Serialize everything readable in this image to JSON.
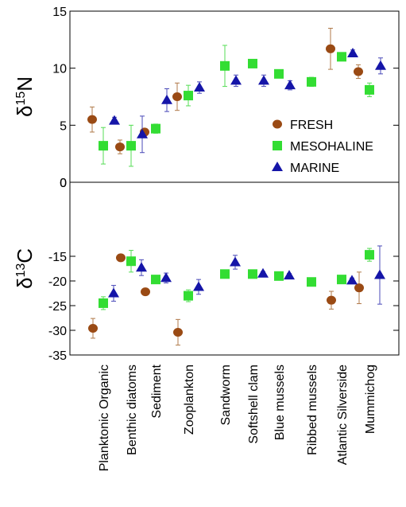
{
  "chart_data": {
    "type": "scatter",
    "categories": [
      "Planktonic Organic",
      "Benthic diatoms",
      "Sediment",
      "Zooplankton",
      "Sandworm",
      "Softshell clam",
      "Blue mussels",
      "Ribbed mussels",
      "Atlantic Silverside",
      "Mummichog"
    ],
    "series_styles": [
      {
        "name": "FRESH",
        "marker": "circle",
        "color": "#9a4a14",
        "errColor": "#b07a4a"
      },
      {
        "name": "MESOHALINE",
        "marker": "square",
        "color": "#33dd33",
        "errColor": "#55dd55"
      },
      {
        "name": "MARINE",
        "marker": "triangle",
        "color": "#1515a8",
        "errColor": "#4a4ab8"
      }
    ],
    "panels": [
      {
        "id": "n15",
        "ylabel_base": "δ",
        "ylabel_sup": "15",
        "ylabel_elem": "N",
        "ylim": [
          0,
          15
        ],
        "yticks": [
          0,
          5,
          10,
          15
        ],
        "series": [
          {
            "name": "FRESH",
            "points": [
              {
                "cat": 0,
                "y": 5.5,
                "err": 1.1
              },
              {
                "cat": 1,
                "y": 3.1,
                "err": 0.6
              },
              {
                "cat": 2,
                "y": 4.4,
                "err": 0.2
              },
              {
                "cat": 3,
                "y": 7.5,
                "err": 1.2
              },
              {
                "cat": 8,
                "y": 11.7,
                "err": 1.8
              },
              {
                "cat": 9,
                "y": 9.7,
                "err": 0.6
              }
            ]
          },
          {
            "name": "MESOHALINE",
            "points": [
              {
                "cat": 0,
                "y": 3.2,
                "err": 1.6
              },
              {
                "cat": 1,
                "y": 3.2,
                "err": 1.8
              },
              {
                "cat": 2,
                "y": 4.7,
                "err": 0.4
              },
              {
                "cat": 3,
                "y": 7.6,
                "err": 0.9
              },
              {
                "cat": 4,
                "y": 10.2,
                "err": 1.8
              },
              {
                "cat": 5,
                "y": 10.4,
                "err": 0.3
              },
              {
                "cat": 6,
                "y": 9.5,
                "err": 0.2
              },
              {
                "cat": 7,
                "y": 8.8,
                "err": 0.4
              },
              {
                "cat": 8,
                "y": 11.0,
                "err": 0.3
              },
              {
                "cat": 9,
                "y": 8.1,
                "err": 0.6
              }
            ]
          },
          {
            "name": "MARINE",
            "points": [
              {
                "cat": 0,
                "y": 5.4,
                "err": 0.3
              },
              {
                "cat": 1,
                "y": 4.2,
                "err": 1.6
              },
              {
                "cat": 2,
                "y": 7.2,
                "err": 1.0
              },
              {
                "cat": 3,
                "y": 8.3,
                "err": 0.5
              },
              {
                "cat": 4,
                "y": 8.9,
                "err": 0.5
              },
              {
                "cat": 5,
                "y": 8.9,
                "err": 0.5
              },
              {
                "cat": 6,
                "y": 8.5,
                "err": 0.4
              },
              {
                "cat": 8,
                "y": 11.3,
                "err": 0.3
              },
              {
                "cat": 9,
                "y": 10.2,
                "err": 0.7
              }
            ]
          }
        ]
      },
      {
        "id": "c13",
        "ylabel_base": "δ",
        "ylabel_sup": "13",
        "ylabel_elem": "C",
        "ylim": [
          -35,
          0
        ],
        "yticks": [
          0,
          -15,
          -20,
          -25,
          -30,
          -35
        ],
        "series": [
          {
            "name": "FRESH",
            "points": [
              {
                "cat": 0,
                "y": -29.6,
                "err": 2.0
              },
              {
                "cat": 1,
                "y": -15.3,
                "err": 0.5
              },
              {
                "cat": 2,
                "y": -22.2,
                "err": 0.3
              },
              {
                "cat": 3,
                "y": -30.4,
                "err": 2.6
              },
              {
                "cat": 8,
                "y": -23.9,
                "err": 1.8
              },
              {
                "cat": 9,
                "y": -21.4,
                "err": 3.2
              }
            ]
          },
          {
            "name": "MESOHALINE",
            "points": [
              {
                "cat": 0,
                "y": -24.5,
                "err": 1.3
              },
              {
                "cat": 1,
                "y": -16.0,
                "err": 2.2
              },
              {
                "cat": 2,
                "y": -19.7,
                "err": 0.5
              },
              {
                "cat": 3,
                "y": -23.0,
                "err": 1.2
              },
              {
                "cat": 4,
                "y": -18.6,
                "err": 0.6
              },
              {
                "cat": 5,
                "y": -18.6,
                "err": 0.4
              },
              {
                "cat": 6,
                "y": -19.0,
                "err": 0.4
              },
              {
                "cat": 7,
                "y": -20.2,
                "err": 0.3
              },
              {
                "cat": 8,
                "y": -19.7,
                "err": 0.4
              },
              {
                "cat": 9,
                "y": -14.7,
                "err": 1.3
              }
            ]
          },
          {
            "name": "MARINE",
            "points": [
              {
                "cat": 0,
                "y": -22.5,
                "err": 1.6
              },
              {
                "cat": 1,
                "y": -17.3,
                "err": 1.6
              },
              {
                "cat": 2,
                "y": -19.4,
                "err": 1.0
              },
              {
                "cat": 3,
                "y": -21.2,
                "err": 1.5
              },
              {
                "cat": 4,
                "y": -16.2,
                "err": 1.4
              },
              {
                "cat": 5,
                "y": -18.5,
                "err": 0.4
              },
              {
                "cat": 6,
                "y": -18.9,
                "err": 0.4
              },
              {
                "cat": 8,
                "y": -19.9,
                "err": 0.5
              },
              {
                "cat": 9,
                "y": -18.8,
                "err": 5.9
              }
            ]
          }
        ]
      }
    ],
    "legend": {
      "placement": "inside-lower-right of top panel",
      "entries": [
        "FRESH",
        "MESOHALINE",
        "MARINE"
      ]
    }
  }
}
